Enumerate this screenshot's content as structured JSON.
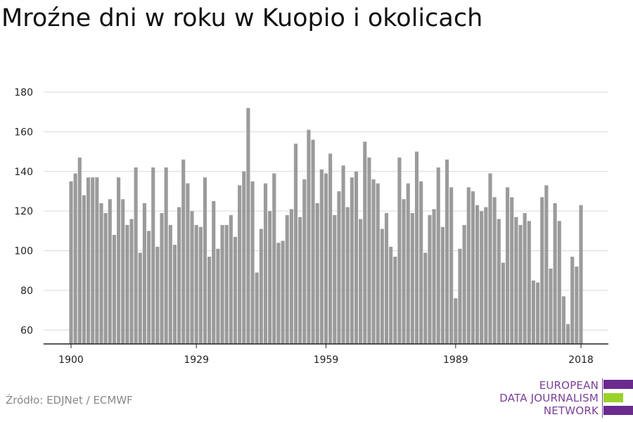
{
  "chart_data": {
    "type": "bar",
    "title": "Mroźne dni w roku w Kuopio i okolicach",
    "xlabel": "",
    "ylabel": "",
    "x_start": 1900,
    "x_end": 2018,
    "xticks": [
      1900,
      1929,
      1959,
      1989,
      2018
    ],
    "yticks": [
      60,
      80,
      100,
      120,
      140,
      160,
      180
    ],
    "ylim": [
      53,
      182
    ],
    "grid": true,
    "bar_color": "#9b9b9b",
    "values": [
      135,
      139,
      147,
      128,
      137,
      137,
      137,
      124,
      119,
      126,
      108,
      137,
      126,
      113,
      116,
      142,
      99,
      124,
      110,
      142,
      102,
      119,
      142,
      113,
      103,
      122,
      146,
      134,
      120,
      113,
      112,
      137,
      97,
      125,
      101,
      113,
      113,
      118,
      107,
      133,
      140,
      172,
      135,
      89,
      111,
      134,
      120,
      139,
      104,
      105,
      118,
      121,
      154,
      117,
      136,
      161,
      156,
      124,
      141,
      139,
      149,
      118,
      130,
      143,
      122,
      137,
      140,
      116,
      155,
      147,
      136,
      134,
      111,
      119,
      102,
      97,
      147,
      126,
      134,
      119,
      150,
      135,
      99,
      118,
      121,
      142,
      112,
      146,
      132,
      76,
      101,
      113,
      132,
      130,
      123,
      120,
      122,
      139,
      127,
      116,
      94,
      132,
      127,
      117,
      113,
      119,
      115,
      85,
      84,
      127,
      133,
      91,
      124,
      115,
      77,
      63,
      97,
      92,
      123
    ]
  },
  "source": "Źródło: EDJNet / ECMWF",
  "logo": {
    "line1": "EUROPEAN",
    "line2": "DATA JOURNALISM",
    "line3": "NETWORK",
    "purple": "#6a2a8e",
    "green": "#9bd22a"
  }
}
